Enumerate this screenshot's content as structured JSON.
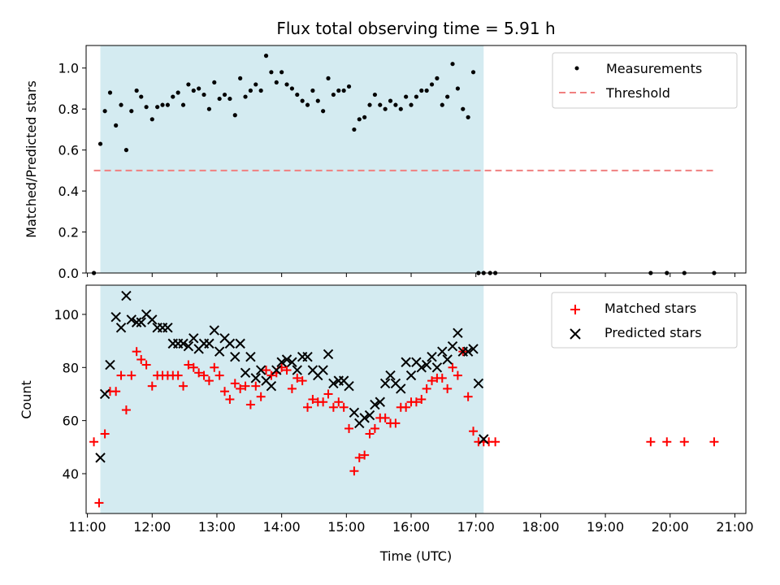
{
  "chart_data": {
    "type": "scatter",
    "title": "Flux total observing time = 5.91 h",
    "xlabel": "Time (UTC)",
    "x_ticks": [
      "11:00",
      "12:00",
      "13:00",
      "14:00",
      "15:00",
      "16:00",
      "17:00",
      "18:00",
      "19:00",
      "20:00",
      "21:00"
    ],
    "x_tick_values": [
      11,
      12,
      13,
      14,
      15,
      16,
      17,
      18,
      19,
      20,
      21
    ],
    "xlim": [
      10.98,
      21.17
    ],
    "observing_window": [
      11.2,
      17.12
    ],
    "colors": {
      "window": "#d4ebf1",
      "measurements": "#000000",
      "threshold": "#f08080",
      "matched": "#ff0000",
      "predicted": "#000000"
    },
    "top_panel": {
      "ylabel": "Matched/Predicted stars",
      "ylim": [
        0,
        1.11
      ],
      "y_ticks": [
        "0.0",
        "0.2",
        "0.4",
        "0.6",
        "0.8",
        "1.0"
      ],
      "y_tick_values": [
        0,
        0.2,
        0.4,
        0.6,
        0.8,
        1.0
      ],
      "threshold": {
        "value": 0.5,
        "x_start": 11.1,
        "x_end": 20.7
      },
      "legend": [
        {
          "label": "Measurements",
          "marker": "dot"
        },
        {
          "label": "Threshold",
          "marker": "dash"
        }
      ],
      "measurements": {
        "x": [
          11.1,
          11.2,
          11.27,
          11.35,
          11.44,
          11.52,
          11.6,
          11.68,
          11.76,
          11.83,
          11.91,
          12.0,
          12.08,
          12.16,
          12.24,
          12.32,
          12.4,
          12.48,
          12.56,
          12.64,
          12.72,
          12.8,
          12.88,
          12.96,
          13.04,
          13.12,
          13.2,
          13.28,
          13.36,
          13.44,
          13.52,
          13.6,
          13.68,
          13.76,
          13.84,
          13.92,
          14.0,
          14.08,
          14.16,
          14.24,
          14.32,
          14.4,
          14.48,
          14.56,
          14.64,
          14.72,
          14.8,
          14.88,
          14.96,
          15.04,
          15.12,
          15.2,
          15.28,
          15.36,
          15.44,
          15.52,
          15.6,
          15.68,
          15.76,
          15.84,
          15.92,
          16.0,
          16.08,
          16.16,
          16.24,
          16.32,
          16.4,
          16.48,
          16.56,
          16.64,
          16.72,
          16.8,
          16.88,
          16.96,
          17.04,
          17.12,
          17.22,
          17.3,
          19.7,
          19.95,
          20.22,
          20.68
        ],
        "y": [
          0.0,
          0.63,
          0.79,
          0.88,
          0.72,
          0.82,
          0.6,
          0.79,
          0.89,
          0.86,
          0.81,
          0.75,
          0.81,
          0.82,
          0.82,
          0.86,
          0.88,
          0.82,
          0.92,
          0.89,
          0.9,
          0.87,
          0.8,
          0.93,
          0.85,
          0.87,
          0.85,
          0.77,
          0.95,
          0.86,
          0.89,
          0.92,
          0.89,
          1.06,
          0.98,
          0.93,
          0.98,
          0.92,
          0.9,
          0.87,
          0.84,
          0.82,
          0.89,
          0.84,
          0.79,
          0.95,
          0.87,
          0.89,
          0.89,
          0.91,
          0.7,
          0.75,
          0.76,
          0.82,
          0.87,
          0.82,
          0.8,
          0.84,
          0.82,
          0.8,
          0.86,
          0.82,
          0.86,
          0.89,
          0.89,
          0.92,
          0.95,
          0.82,
          0.86,
          1.02,
          0.9,
          0.8,
          0.76,
          0.98,
          0.0,
          0.0,
          0.0,
          0.0,
          0.0,
          0.0,
          0.0,
          0.0
        ]
      }
    },
    "bottom_panel": {
      "ylabel": "Count",
      "ylim": [
        25,
        111
      ],
      "y_ticks": [
        "40",
        "60",
        "80",
        "100"
      ],
      "y_tick_values": [
        40,
        60,
        80,
        100
      ],
      "legend": [
        {
          "label": "Matched stars",
          "marker": "plus"
        },
        {
          "label": "Predicted stars",
          "marker": "x"
        }
      ],
      "matched": {
        "x": [
          11.1,
          11.18,
          11.27,
          11.35,
          11.44,
          11.52,
          11.6,
          11.68,
          11.76,
          11.83,
          11.91,
          12.0,
          12.08,
          12.16,
          12.24,
          12.32,
          12.4,
          12.48,
          12.56,
          12.64,
          12.72,
          12.8,
          12.88,
          12.96,
          13.04,
          13.12,
          13.2,
          13.28,
          13.36,
          13.44,
          13.52,
          13.6,
          13.68,
          13.76,
          13.84,
          13.92,
          14.0,
          14.08,
          14.16,
          14.24,
          14.32,
          14.4,
          14.48,
          14.56,
          14.64,
          14.72,
          14.8,
          14.88,
          14.96,
          15.04,
          15.12,
          15.2,
          15.28,
          15.36,
          15.44,
          15.52,
          15.6,
          15.68,
          15.76,
          15.84,
          15.92,
          16.0,
          16.08,
          16.16,
          16.24,
          16.32,
          16.4,
          16.48,
          16.56,
          16.64,
          16.72,
          16.8,
          16.88,
          16.96,
          17.04,
          17.12,
          17.2,
          17.3,
          19.7,
          19.95,
          20.22,
          20.68
        ],
        "y": [
          52,
          29,
          55,
          71,
          71,
          77,
          64,
          77,
          86,
          83,
          81,
          73,
          77,
          77,
          77,
          77,
          77,
          73,
          81,
          80,
          78,
          77,
          75,
          80,
          77,
          71,
          68,
          74,
          72,
          73,
          66,
          73,
          69,
          79,
          77,
          78,
          80,
          79,
          72,
          76,
          75,
          65,
          68,
          67,
          67,
          70,
          65,
          67,
          65,
          57,
          41,
          46,
          47,
          55,
          57,
          61,
          61,
          59,
          59,
          65,
          65,
          67,
          67,
          68,
          72,
          75,
          76,
          76,
          72,
          80,
          77,
          86,
          69,
          56,
          52,
          52,
          52,
          52,
          52,
          52,
          52,
          52
        ]
      },
      "predicted": {
        "x": [
          11.2,
          11.27,
          11.35,
          11.44,
          11.52,
          11.6,
          11.68,
          11.76,
          11.83,
          11.91,
          12.0,
          12.08,
          12.16,
          12.24,
          12.32,
          12.4,
          12.48,
          12.56,
          12.64,
          12.72,
          12.8,
          12.88,
          12.96,
          13.04,
          13.12,
          13.2,
          13.28,
          13.36,
          13.44,
          13.52,
          13.6,
          13.68,
          13.76,
          13.84,
          13.92,
          14.0,
          14.08,
          14.16,
          14.24,
          14.32,
          14.4,
          14.48,
          14.56,
          14.64,
          14.72,
          14.8,
          14.88,
          14.96,
          15.04,
          15.12,
          15.2,
          15.28,
          15.36,
          15.44,
          15.52,
          15.6,
          15.68,
          15.76,
          15.84,
          15.92,
          16.0,
          16.08,
          16.16,
          16.24,
          16.32,
          16.4,
          16.48,
          16.56,
          16.64,
          16.72,
          16.8,
          16.88,
          16.96,
          17.04,
          17.12
        ],
        "y": [
          46,
          70,
          81,
          99,
          95,
          107,
          98,
          97,
          97,
          100,
          98,
          95,
          95,
          95,
          89,
          89,
          89,
          88,
          91,
          87,
          89,
          89,
          94,
          86,
          91,
          89,
          84,
          89,
          78,
          84,
          76,
          79,
          75,
          73,
          79,
          82,
          83,
          82,
          79,
          84,
          84,
          79,
          77,
          79,
          85,
          74,
          75,
          75,
          73,
          63,
          59,
          61,
          62,
          66,
          67,
          74,
          77,
          74,
          72,
          82,
          77,
          82,
          80,
          81,
          84,
          80,
          86,
          83,
          88,
          93,
          86,
          86,
          87,
          74,
          53
        ]
      }
    }
  }
}
